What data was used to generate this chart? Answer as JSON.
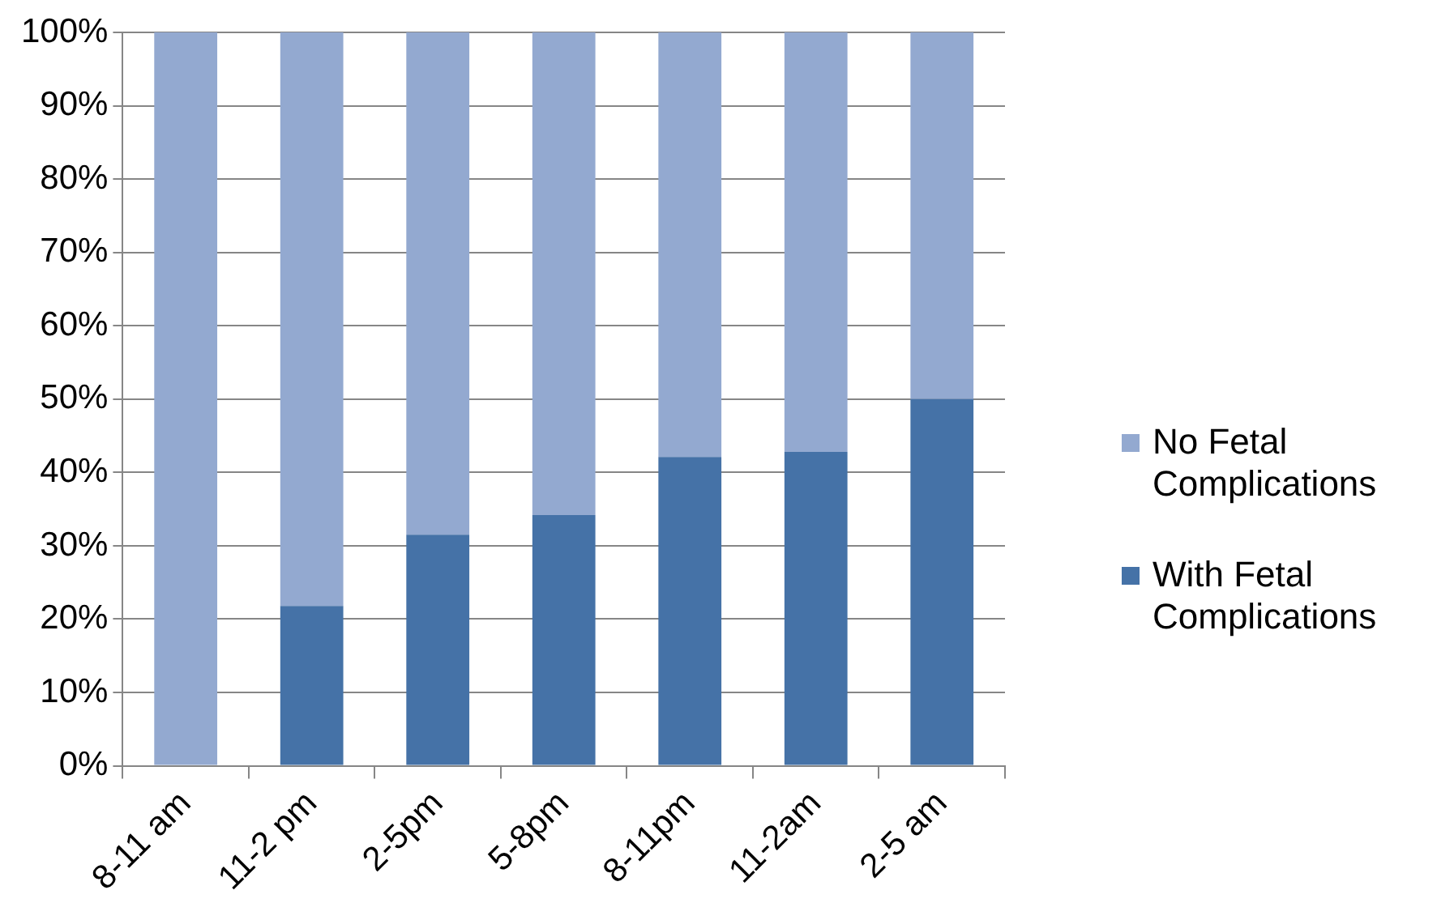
{
  "chart_data": {
    "type": "bar",
    "stacked": true,
    "categories": [
      "8-11 am",
      "11-2 pm",
      "2-5pm",
      "5-8pm",
      "8-11pm",
      "11-2am",
      "2-5 am"
    ],
    "series": [
      {
        "name": "With Fetal Complications",
        "color": "#4572a7",
        "values": [
          0,
          21.8,
          31.5,
          34.2,
          42.1,
          42.8,
          50
        ]
      },
      {
        "name": "No Fetal Complications",
        "color": "#93a9d0",
        "values": [
          100,
          78.2,
          68.5,
          65.8,
          57.9,
          57.2,
          50
        ]
      }
    ],
    "ylim": [
      0,
      100
    ],
    "yticks": [
      {
        "value": 0,
        "label": "0%"
      },
      {
        "value": 10,
        "label": "10%"
      },
      {
        "value": 20,
        "label": "20%"
      },
      {
        "value": 30,
        "label": "30%"
      },
      {
        "value": 40,
        "label": "40%"
      },
      {
        "value": 50,
        "label": "50%"
      },
      {
        "value": 60,
        "label": "60%"
      },
      {
        "value": 70,
        "label": "70%"
      },
      {
        "value": 80,
        "label": "80%"
      },
      {
        "value": 90,
        "label": "90%"
      },
      {
        "value": 100,
        "label": "100%"
      }
    ],
    "grid": "y",
    "legend": "right"
  }
}
